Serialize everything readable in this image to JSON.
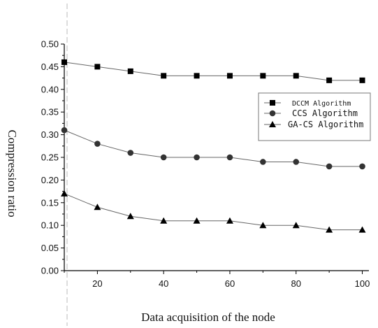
{
  "chart_data": {
    "type": "line",
    "xlabel": "Data acquisition of the node",
    "ylabel": "Compression ratio",
    "xlim": [
      10,
      102
    ],
    "ylim": [
      0.0,
      0.5
    ],
    "x_ticks": [
      20,
      40,
      60,
      80,
      100
    ],
    "y_ticks": [
      "0.00",
      "0.05",
      "0.10",
      "0.15",
      "0.20",
      "0.25",
      "0.30",
      "0.35",
      "0.40",
      "0.45",
      "0.50"
    ],
    "legend_position": "right",
    "x": [
      10,
      20,
      30,
      40,
      50,
      60,
      70,
      80,
      90,
      100
    ],
    "series": [
      {
        "name": "DCCM Algorithm",
        "marker": "square",
        "color": "#000000",
        "values": [
          0.46,
          0.45,
          0.44,
          0.43,
          0.43,
          0.43,
          0.43,
          0.43,
          0.42,
          0.42
        ]
      },
      {
        "name": "CCS Algorithm",
        "marker": "circle",
        "color": "#333333",
        "values": [
          0.31,
          0.28,
          0.26,
          0.25,
          0.25,
          0.25,
          0.24,
          0.24,
          0.23,
          0.23
        ]
      },
      {
        "name": "GA-CS Algorithm",
        "marker": "triangle",
        "color": "#000000",
        "values": [
          0.17,
          0.14,
          0.12,
          0.11,
          0.11,
          0.11,
          0.1,
          0.1,
          0.09,
          0.09
        ]
      }
    ]
  }
}
